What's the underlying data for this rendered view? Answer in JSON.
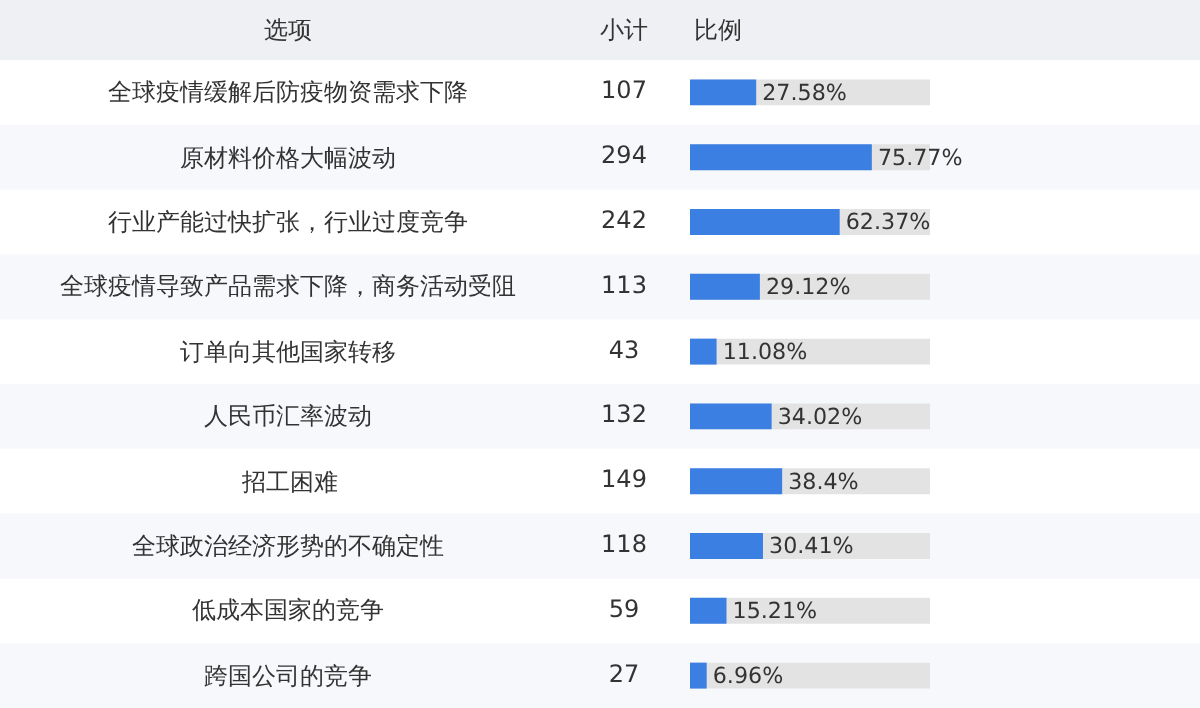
{
  "chart_data": [
    {
      "type": "other",
      "ylabel": "选项",
      "title": "小计",
      "categories": [
        "全球疫情缓解后防疫物资需求下降",
        "原材料价格大幅波动",
        "行业产能过快扩张，行业过度竞争",
        "全球疫情导致产品需求下降，商务活动受阻",
        "订单向其他国家转移",
        "人民币汇率波动",
        "招工困难",
        "全球政治经济形势的不确定性",
        "低成本国家的竞争",
        "跨国公司的竞争"
      ],
      "values": [
        107,
        294,
        242,
        113,
        43,
        132,
        149,
        118,
        59,
        27
      ],
      "data_labels": true
    },
    {
      "type": "bar",
      "orientation": "horizontal",
      "title": "比例",
      "categories": [
        "全球疫情缓解后防疫物资需求下降",
        "原材料价格大幅波动",
        "行业产能过快扩张，行业过度竞争",
        "全球疫情导致产品需求下降，商务活动受阻",
        "订单向其他国家转移",
        "人民币汇率波动",
        "招工困难",
        "全球政治经济形势的不确定性",
        "低成本国家的竞争",
        "跨国公司的竞争"
      ],
      "values": [
        27.58,
        75.77,
        62.37,
        29.12,
        11.08,
        34.02,
        38.4,
        30.41,
        15.21,
        6.96
      ],
      "value_labels": [
        "27.58%",
        "75.77%",
        "62.37%",
        "29.12%",
        "11.08%",
        "34.02%",
        "38.4%",
        "30.41%",
        "15.21%",
        "6.96%"
      ],
      "color": "#3c7fe3",
      "xlim": [
        0,
        100
      ],
      "tick_labels": false
    }
  ]
}
